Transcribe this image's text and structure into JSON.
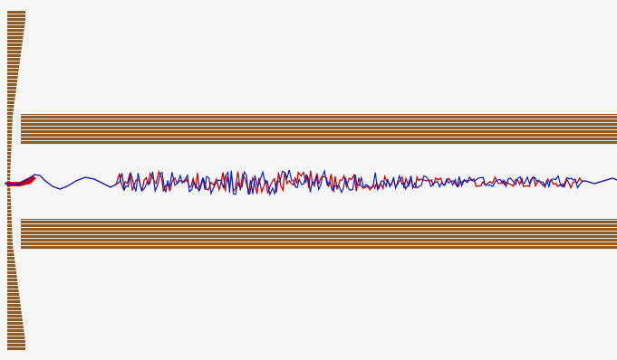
{
  "scene": {
    "background_color": "#f5f5f5",
    "wall_color": "#8b5a2b",
    "wall_line_color": "#f4e7d4",
    "trace_red_color": "#cc0000",
    "trace_blue_color": "#0022cc"
  }
}
